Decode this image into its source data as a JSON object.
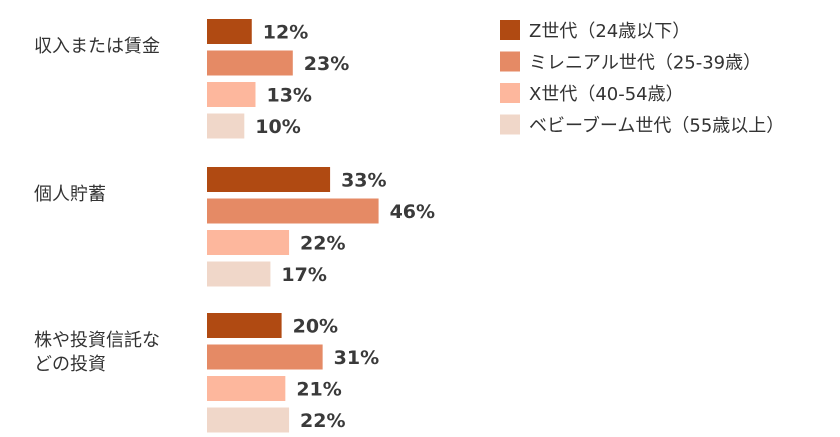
{
  "chart_data": {
    "type": "bar",
    "orientation": "horizontal",
    "categories": [
      [
        "収入または賃金"
      ],
      [
        "個人貯蓄"
      ],
      [
        "株や投資信託な",
        "どの投資"
      ]
    ],
    "series": [
      {
        "name": "Z世代（24歳以下）",
        "color": "#b04a12",
        "values": [
          12,
          33,
          20
        ]
      },
      {
        "name": "ミレニアル世代（25-39歳）",
        "color": "#e58a65",
        "values": [
          23,
          46,
          31
        ]
      },
      {
        "name": "X世代（40-54歳）",
        "color": "#fdb79d",
        "values": [
          13,
          22,
          21
        ]
      },
      {
        "name": "ベビーブーム世代（55歳以上）",
        "color": "#f0d7c9",
        "values": [
          10,
          17,
          22
        ]
      }
    ],
    "value_suffix": "%",
    "legend_position": "top-right",
    "grid": false
  }
}
